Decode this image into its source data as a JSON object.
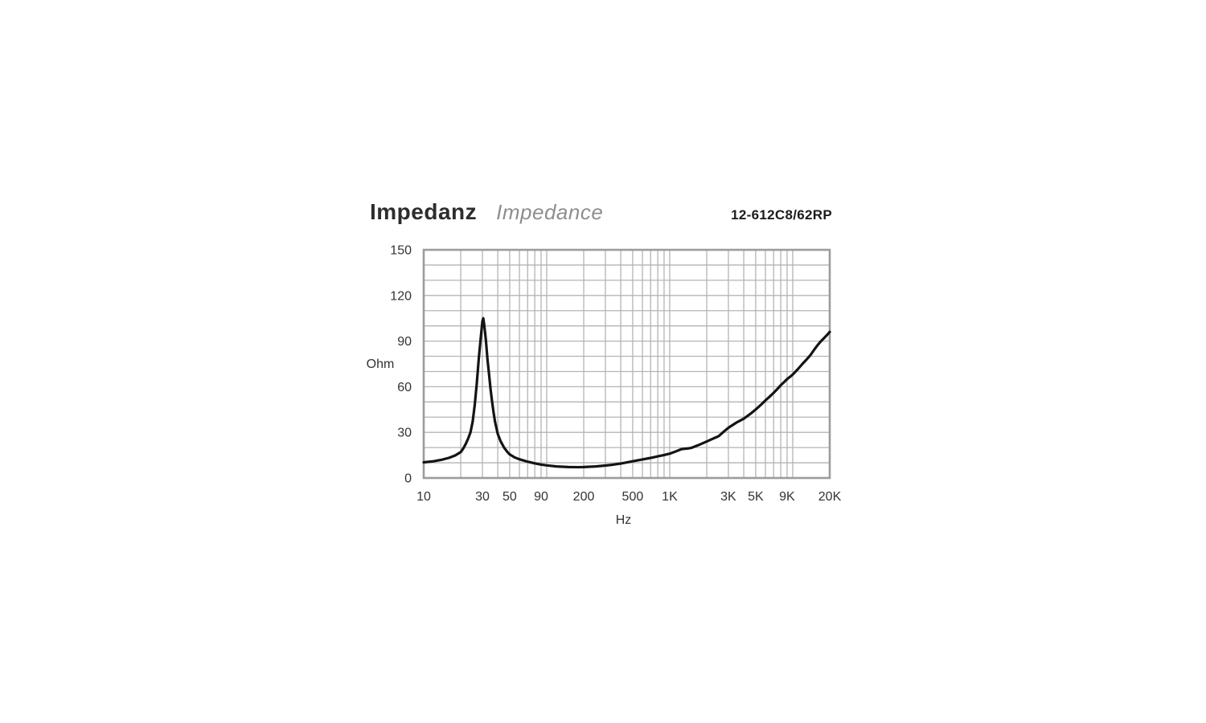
{
  "header": {
    "title_de": "Impedanz",
    "title_en": "Impedance",
    "model": "12-612C8/62RP"
  },
  "colors": {
    "background": "#ffffff",
    "grid": "#b4b4b4",
    "plot_border": "#9c9c9c",
    "curve": "#141414",
    "tick_text": "#333333"
  },
  "chart_data": {
    "type": "line",
    "title": "Impedanz / Impedance",
    "xlabel": "Hz",
    "ylabel": "Ohm",
    "x_scale": "log",
    "xlim": [
      10,
      20000
    ],
    "ylim": [
      0,
      150
    ],
    "grid": true,
    "y_grid_step": 10,
    "y_ticks": [
      0,
      30,
      60,
      90,
      120,
      150
    ],
    "x_ticks": [
      {
        "value": 10,
        "label": "10"
      },
      {
        "value": 30,
        "label": "30"
      },
      {
        "value": 50,
        "label": "50"
      },
      {
        "value": 90,
        "label": "90"
      },
      {
        "value": 200,
        "label": "200"
      },
      {
        "value": 500,
        "label": "500"
      },
      {
        "value": 1000,
        "label": "1K"
      },
      {
        "value": 3000,
        "label": "3K"
      },
      {
        "value": 5000,
        "label": "5K"
      },
      {
        "value": 9000,
        "label": "9K"
      },
      {
        "value": 20000,
        "label": "20K"
      }
    ],
    "series": [
      {
        "name": "impedance",
        "units": {
          "x": "Hz",
          "y": "Ohm"
        },
        "points": [
          [
            10,
            10.3
          ],
          [
            12,
            11
          ],
          [
            14,
            12
          ],
          [
            16,
            13.2
          ],
          [
            18,
            14.8
          ],
          [
            20,
            17
          ],
          [
            21,
            19.5
          ],
          [
            22,
            22.5
          ],
          [
            23,
            26
          ],
          [
            24,
            30
          ],
          [
            25,
            37
          ],
          [
            26,
            48
          ],
          [
            27,
            62
          ],
          [
            28,
            78
          ],
          [
            29,
            91
          ],
          [
            30,
            103
          ],
          [
            30.5,
            105
          ],
          [
            31,
            101
          ],
          [
            32,
            91
          ],
          [
            33,
            78
          ],
          [
            34,
            68
          ],
          [
            35,
            58
          ],
          [
            36,
            50
          ],
          [
            37,
            43
          ],
          [
            38,
            37
          ],
          [
            40,
            29
          ],
          [
            42,
            24.5
          ],
          [
            45,
            20
          ],
          [
            48,
            17
          ],
          [
            50,
            15.5
          ],
          [
            55,
            13.5
          ],
          [
            60,
            12.3
          ],
          [
            70,
            10.7
          ],
          [
            80,
            9.6
          ],
          [
            90,
            8.8
          ],
          [
            100,
            8.3
          ],
          [
            120,
            7.6
          ],
          [
            150,
            7.2
          ],
          [
            180,
            7.1
          ],
          [
            200,
            7.2
          ],
          [
            250,
            7.6
          ],
          [
            300,
            8.2
          ],
          [
            350,
            8.8
          ],
          [
            400,
            9.5
          ],
          [
            500,
            11
          ],
          [
            600,
            12.2
          ],
          [
            700,
            13.2
          ],
          [
            800,
            14.2
          ],
          [
            900,
            15.1
          ],
          [
            1000,
            16
          ],
          [
            1100,
            17.2
          ],
          [
            1250,
            19
          ],
          [
            1400,
            19.4
          ],
          [
            1500,
            19.8
          ],
          [
            1700,
            21.5
          ],
          [
            2000,
            24
          ],
          [
            2200,
            25.5
          ],
          [
            2500,
            27.5
          ],
          [
            2800,
            31
          ],
          [
            3000,
            33
          ],
          [
            3500,
            36.5
          ],
          [
            4000,
            39
          ],
          [
            4500,
            42
          ],
          [
            5000,
            45
          ],
          [
            5500,
            48
          ],
          [
            6000,
            51
          ],
          [
            6500,
            53.5
          ],
          [
            7000,
            56
          ],
          [
            7500,
            58.5
          ],
          [
            8000,
            61
          ],
          [
            8500,
            63
          ],
          [
            9000,
            65
          ],
          [
            9500,
            66.5
          ],
          [
            10000,
            68
          ],
          [
            11000,
            71.5
          ],
          [
            12000,
            75
          ],
          [
            13000,
            78
          ],
          [
            14000,
            81
          ],
          [
            15000,
            84.5
          ],
          [
            16000,
            87.5
          ],
          [
            17000,
            90
          ],
          [
            18000,
            92
          ],
          [
            19000,
            94
          ],
          [
            20000,
            96
          ]
        ]
      }
    ]
  }
}
